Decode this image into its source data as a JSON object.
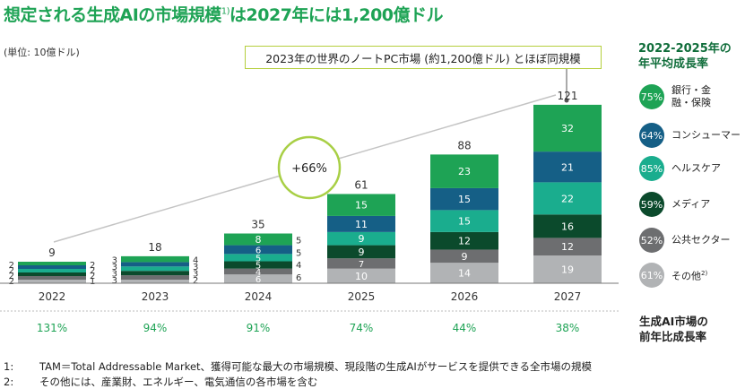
{
  "title": "想定される生成AIの市場規模",
  "title_sup": "1)",
  "title_rest": "は2027年には1,200億ドル",
  "unit_label": "(単位: 10億ドル)",
  "callout": "2023年の世界のノートPC市場 (約1,200億ドル) とほぼ同規模",
  "cagr_badge": "+66%",
  "legend_title_line1": "2022-2025年の",
  "legend_title_line2": "年平均成長率",
  "growth_title_line1": "生成AI市場の",
  "growth_title_line2": "前年比成長率",
  "legend": [
    {
      "cagr": "75%",
      "label": "銀行・金融・保険",
      "color": "#1ea355"
    },
    {
      "cagr": "64%",
      "label": "コンシューマー",
      "color": "#155f86"
    },
    {
      "cagr": "85%",
      "label": "ヘルスケア",
      "color": "#1aad8e"
    },
    {
      "cagr": "59%",
      "label": "メディア",
      "color": "#0b4a2c"
    },
    {
      "cagr": "52%",
      "label": "公共セクター",
      "color": "#6d6e70"
    },
    {
      "cagr": "61%",
      "label": "その他",
      "label_sup": "2)",
      "color": "#b1b3b5"
    }
  ],
  "notes": [
    {
      "num": "1:",
      "text": "TAM＝Total Addressable Market、獲得可能な最大の市場規模、現段階の生成AIがサービスを提供できる全市場の規模"
    },
    {
      "num": "2:",
      "text": "その他には、産業財、エネルギー、電気通信の各市場を含む"
    }
  ],
  "chart_data": {
    "type": "bar",
    "stacked": true,
    "categories": [
      "2022",
      "2023",
      "2024",
      "2025",
      "2026",
      "2027"
    ],
    "totals": [
      "9",
      "18",
      "35",
      "61",
      "88",
      "121"
    ],
    "growth": [
      "131%",
      "94%",
      "91%",
      "74%",
      "44%",
      "38%"
    ],
    "series": [
      {
        "name": "その他",
        "color": "#b1b3b5",
        "values": [
          1,
          2,
          6,
          10,
          14,
          19
        ],
        "labels": [
          "1",
          "2",
          "6",
          "10",
          "14",
          "19"
        ]
      },
      {
        "name": "公共セクター",
        "color": "#6d6e70",
        "values": [
          2,
          3,
          4,
          7,
          9,
          12
        ],
        "labels": [
          "2",
          "3",
          "4",
          "7",
          "9",
          "12"
        ]
      },
      {
        "name": "メディア",
        "color": "#0b4a2c",
        "values": [
          2,
          3,
          5,
          9,
          12,
          16
        ],
        "labels": [
          "2",
          "3",
          "5",
          "9",
          "12",
          "16"
        ]
      },
      {
        "name": "ヘルスケア",
        "color": "#1aad8e",
        "values": [
          2,
          3,
          5,
          9,
          15,
          22
        ],
        "labels": [
          "2",
          "3",
          "5",
          "9",
          "15",
          "22"
        ]
      },
      {
        "name": "コンシューマー",
        "color": "#155f86",
        "values": [
          2,
          3,
          6,
          11,
          15,
          21
        ],
        "labels": [
          "2",
          "3",
          "6",
          "11",
          "15",
          "21"
        ]
      },
      {
        "name": "銀行・金融・保険",
        "color": "#1ea355",
        "values": [
          2,
          4,
          8,
          15,
          23,
          32
        ],
        "labels": [
          "2",
          "4",
          "8",
          "15",
          "23",
          "32"
        ]
      }
    ],
    "side_labels": {
      "left": [
        [
          "2",
          "2",
          "2",
          "2"
        ],
        [
          "3",
          "3",
          "3",
          "3"
        ]
      ],
      "right": [
        [
          "2",
          "2",
          "2",
          "1"
        ],
        [
          "4",
          "3",
          "3",
          "2"
        ],
        [
          "5",
          "5",
          "4",
          "6"
        ]
      ]
    },
    "ylim": [
      0,
      125
    ]
  }
}
